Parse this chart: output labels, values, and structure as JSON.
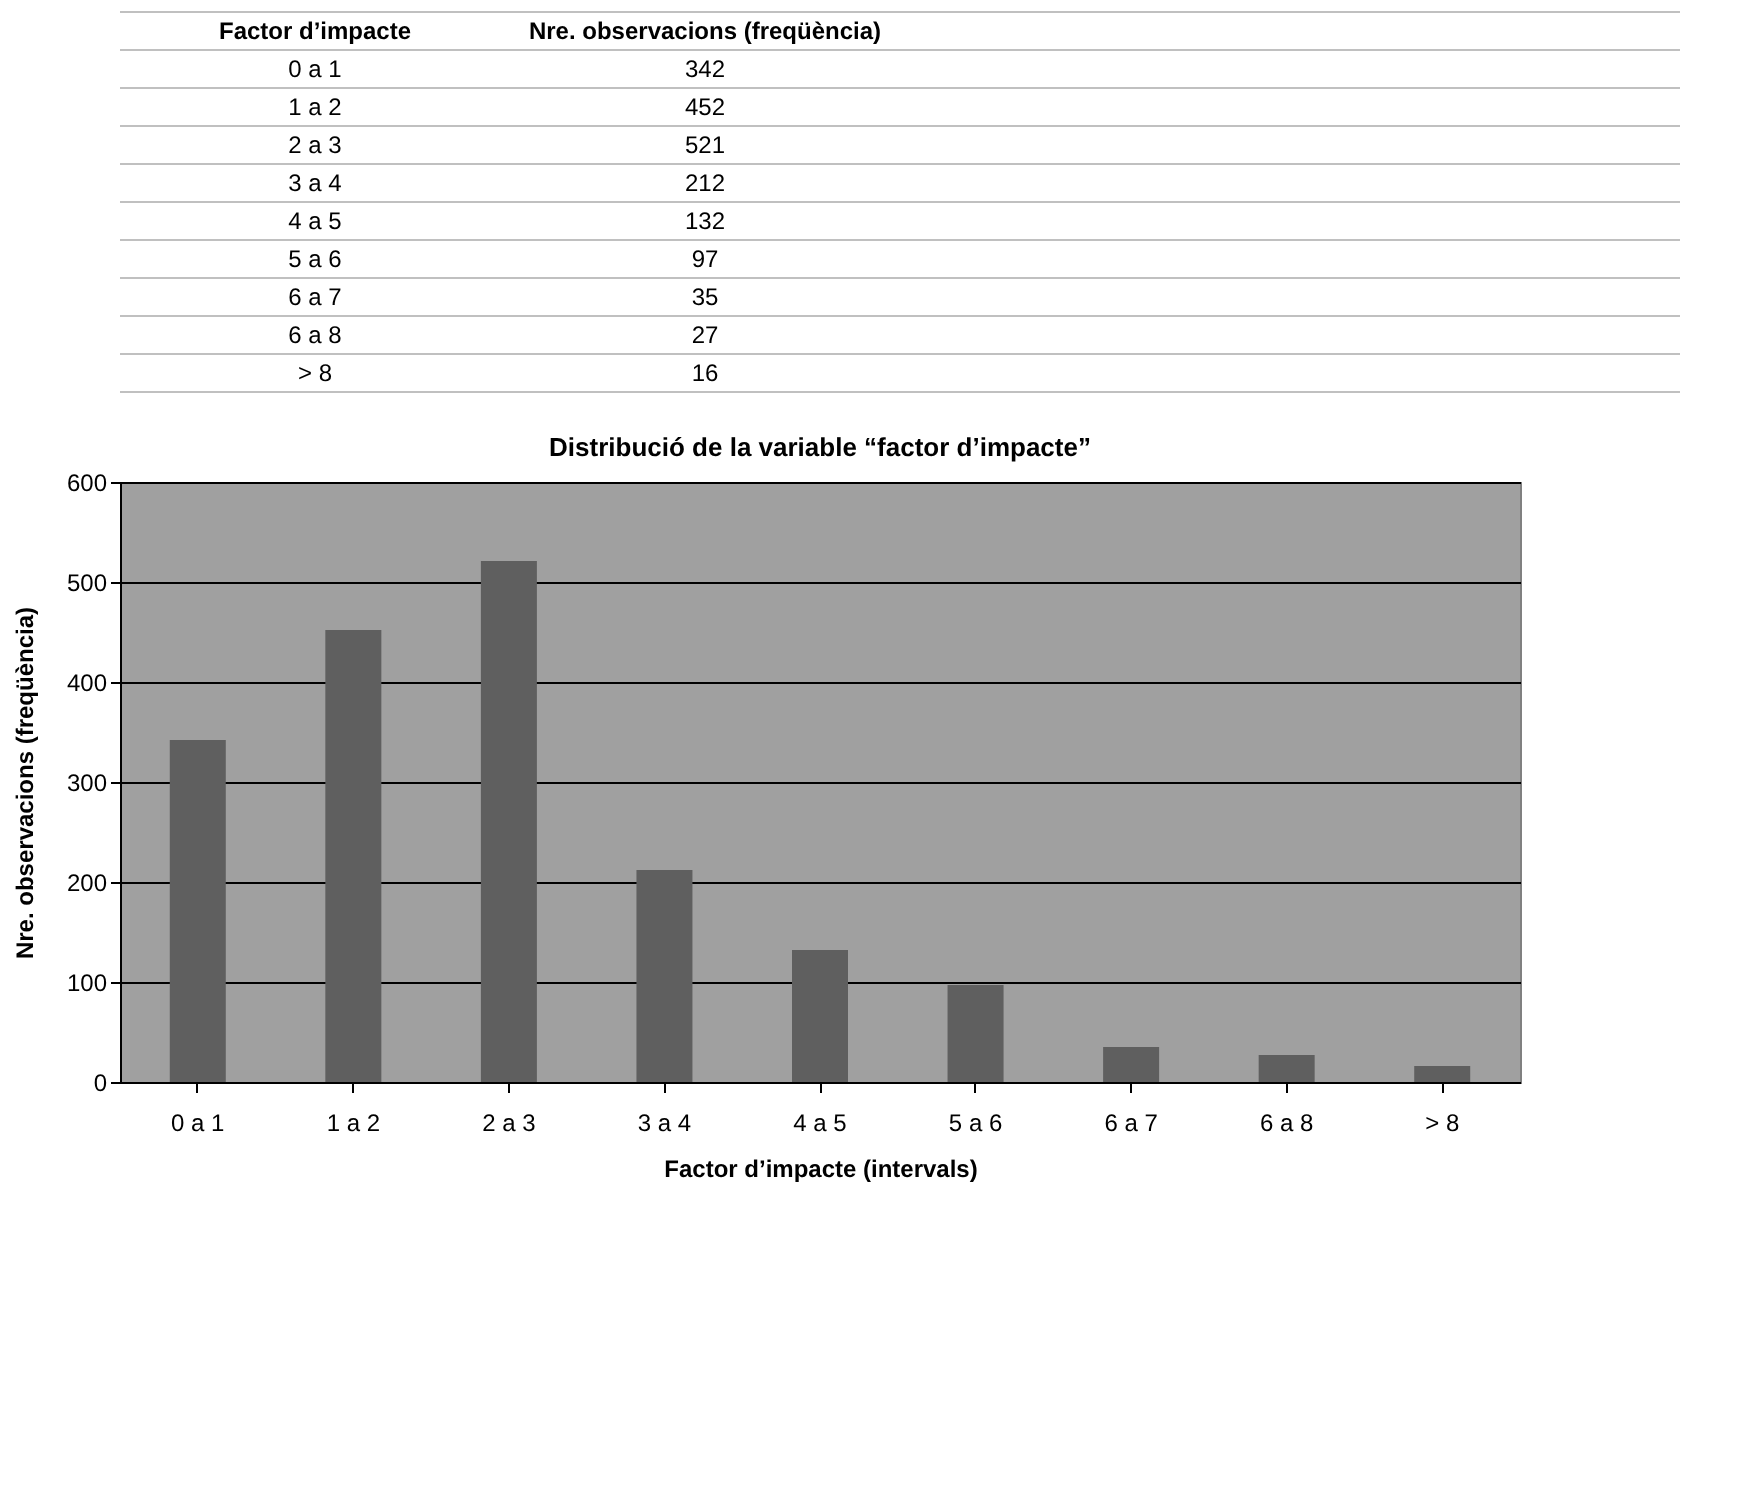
{
  "chart_data": [
    {
      "type": "other",
      "categories": [
        "0 a 1",
        "1 a 2",
        "2 a 3",
        "3 a 4",
        "4 a 5",
        "5 a 6",
        "6 a 7",
        "6 a 8",
        "> 8"
      ],
      "values": [
        342,
        452,
        521,
        212,
        132,
        97,
        35,
        27,
        16
      ],
      "data_labels": true,
      "xlabel": "Factor d’impacte",
      "ylabel": "Nre. observacions (freqüència)"
    },
    {
      "type": "bar",
      "title": "Distribució de la variable “factor d’impacte”",
      "xlabel": "Factor d’impacte (intervals)",
      "ylabel": "Nre. observacions (freqüència)",
      "categories": [
        "0 a 1",
        "1 a 2",
        "2 a 3",
        "3 a 4",
        "4 a 5",
        "5 a 6",
        "6 a 7",
        "6 a 8",
        "> 8"
      ],
      "values": [
        342,
        452,
        521,
        212,
        132,
        97,
        35,
        27,
        16
      ],
      "color": "#5f5f5f",
      "ylim": [
        0,
        600
      ],
      "yticks": [
        0,
        100,
        200,
        300,
        400,
        500,
        600
      ],
      "grid": "y"
    }
  ]
}
